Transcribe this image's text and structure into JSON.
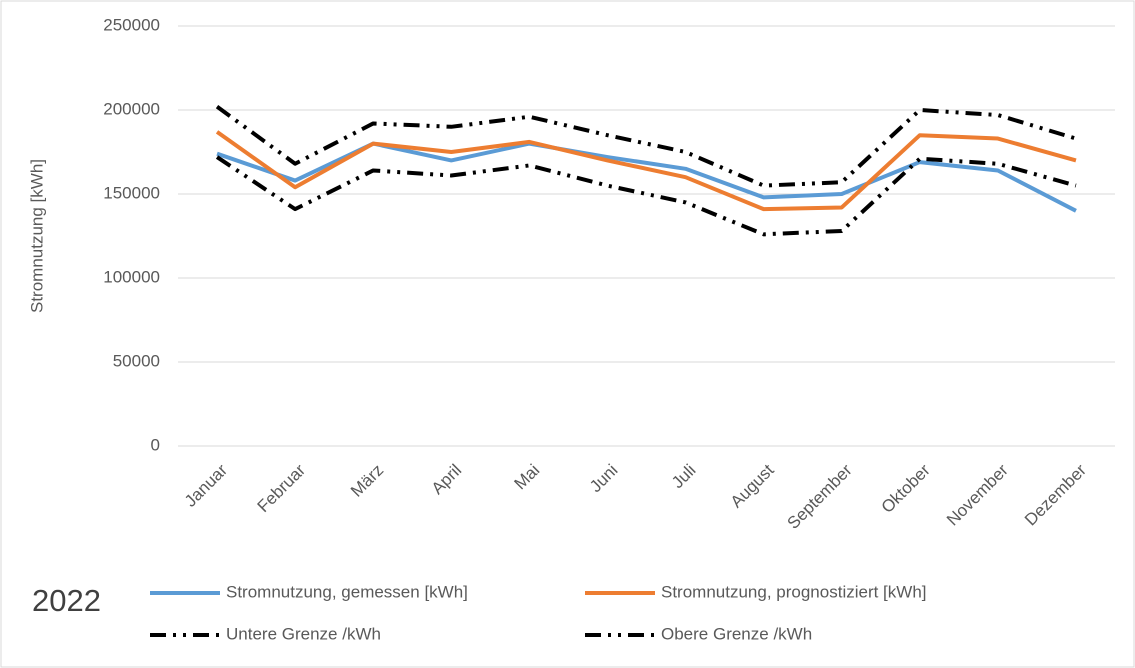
{
  "chart_data": {
    "type": "line",
    "y_label": "Stromnutzung [kWh]",
    "legend_title": "2022",
    "categories": [
      "Januar",
      "Februar",
      "März",
      "April",
      "Mai",
      "Juni",
      "Juli",
      "August",
      "September",
      "Oktober",
      "November",
      "Dezember"
    ],
    "series": [
      {
        "name": "Stromnutzung, gemessen [kWh]",
        "color": "#5b9bd5",
        "dash": "solid",
        "values": [
          174000,
          158000,
          180000,
          170000,
          180000,
          172000,
          165000,
          148000,
          150000,
          169000,
          164000,
          140000
        ]
      },
      {
        "name": "Stromnutzung, prognostiziert [kWh]",
        "color": "#ed7d31",
        "dash": "solid",
        "values": [
          187000,
          154000,
          180000,
          175000,
          181000,
          170000,
          160000,
          141000,
          142000,
          185000,
          183000,
          170000
        ]
      },
      {
        "name": "Untere Grenze /kWh",
        "color": "#000000",
        "dash": "dash-dot-dot",
        "values": [
          172000,
          141000,
          164000,
          161000,
          167000,
          155000,
          145000,
          126000,
          128000,
          171000,
          168000,
          155000
        ]
      },
      {
        "name": "Obere Grenze /kWh",
        "color": "#000000",
        "dash": "dash-dot-dot",
        "values": [
          202000,
          168000,
          192000,
          190000,
          196000,
          185000,
          175000,
          155000,
          157000,
          200000,
          197000,
          183000
        ]
      }
    ],
    "ylim": [
      0,
      250000
    ],
    "yticks": [
      0,
      50000,
      100000,
      150000,
      200000,
      250000
    ],
    "grid": true
  }
}
